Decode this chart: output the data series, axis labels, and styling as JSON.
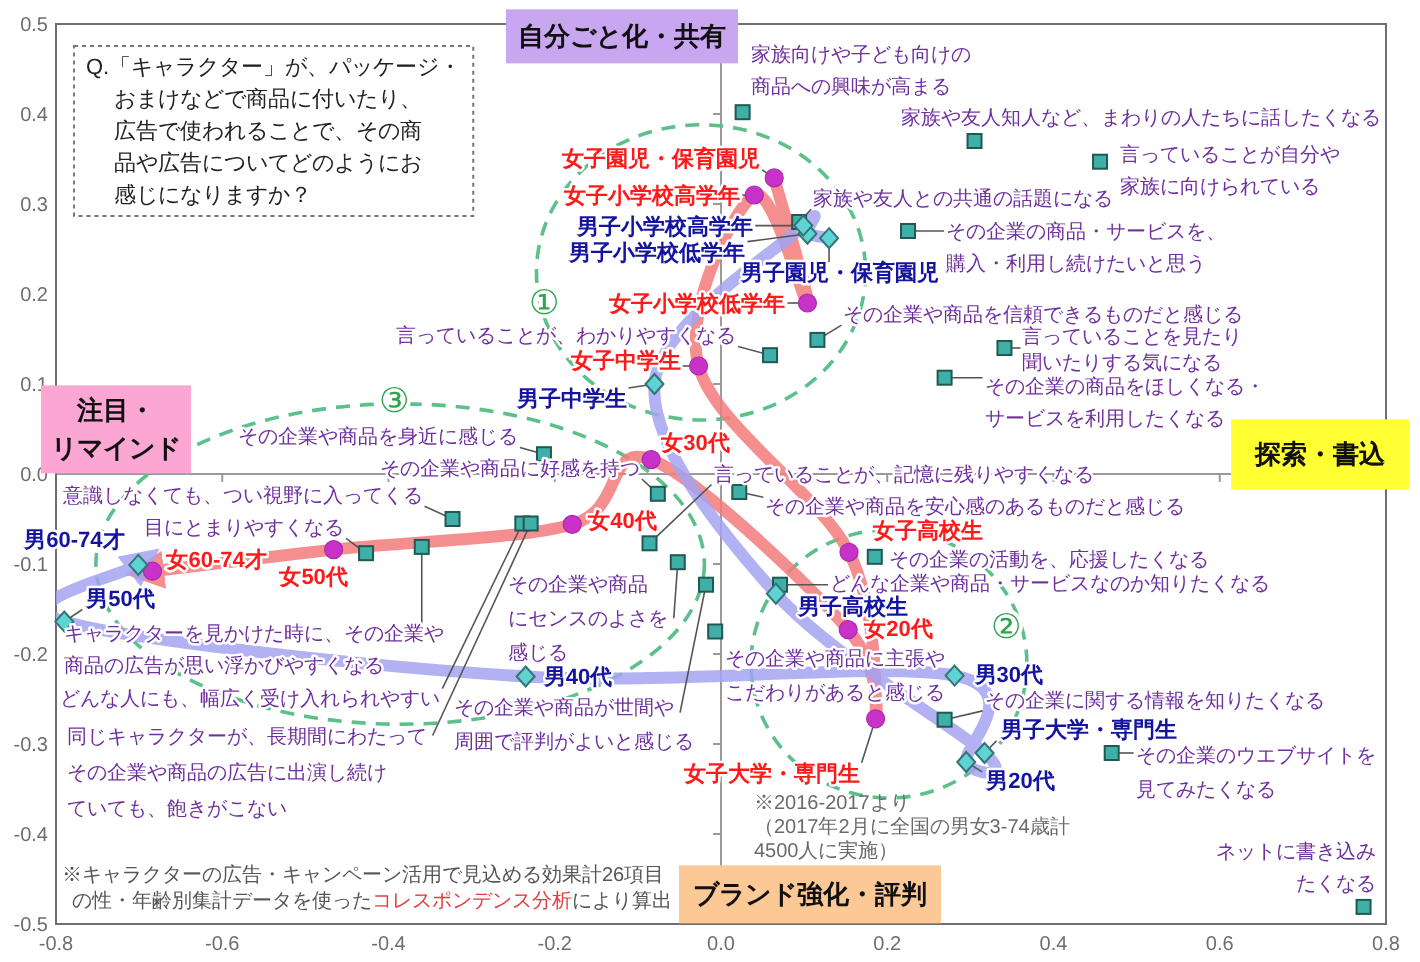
{
  "chart_data": {
    "type": "scatter",
    "title": "Q.「キャラクター」が、パッケージ・おまけなどで商品に付いたり、広告で使われることで、その商品や広告についてどのようにお感じになりますか？",
    "xlim": [
      -0.8,
      0.8
    ],
    "xticks": [
      -0.8,
      -0.6,
      -0.4,
      -0.2,
      {
        "value": 0,
        "label": "0.0"
      },
      0.2,
      0.4,
      0.6,
      0.8
    ],
    "ylim": [
      -0.5,
      0.5
    ],
    "yticks": [
      -0.5,
      -0.4,
      -0.3,
      -0.2,
      -0.1,
      {
        "value": 0,
        "label": "0.0"
      },
      0.1,
      0.2,
      0.3,
      0.4,
      0.5
    ],
    "series": [
      {
        "type": "line",
        "color": "#f47c7c",
        "x": [
          0.064,
          0.104,
          0.04,
          -0.027,
          0.154,
          0.186,
          0.153,
          -0.084,
          -0.179,
          -0.466,
          -0.684
        ],
        "values": [
          0.329,
          0.19,
          0.31,
          0.12,
          -0.087,
          -0.272,
          -0.173,
          0.016,
          -0.056,
          -0.084,
          -0.108
        ]
      },
      {
        "type": "line",
        "color": "#a4a4f2",
        "x": [
          0.13,
          0.104,
          0.099,
          -0.08,
          0.066,
          0.317,
          0.295,
          0.281,
          -0.235,
          -0.79,
          -0.701
        ],
        "values": [
          0.262,
          0.267,
          0.276,
          0.1,
          -0.133,
          -0.31,
          -0.32,
          -0.224,
          -0.225,
          -0.164,
          -0.101
        ]
      },
      {
        "marker": "square",
        "color": "#3fb0a8",
        "x": [
          0.026,
          0.305,
          0.456,
          0.094,
          0.225,
          0.116,
          0.341,
          0.269,
          0.059,
          -0.213,
          -0.076,
          -0.323,
          -0.427,
          -0.36,
          -0.239,
          -0.229,
          -0.052,
          -0.018,
          -0.086,
          0.022,
          0.185,
          0.071,
          -0.007,
          0.269,
          0.47,
          0.773
        ],
        "values": [
          0.402,
          0.37,
          0.347,
          0.28,
          0.27,
          0.149,
          0.14,
          0.107,
          0.132,
          0.022,
          -0.022,
          -0.05,
          -0.088,
          -0.081,
          -0.055,
          -0.055,
          -0.098,
          -0.123,
          -0.077,
          -0.02,
          -0.092,
          -0.123,
          -0.175,
          -0.273,
          -0.31,
          -0.481
        ]
      },
      {
        "marker": "circle",
        "color": "#c832c8",
        "x": [
          0.064,
          0.104,
          0.04,
          -0.027,
          0.154,
          0.186,
          0.153,
          -0.084,
          -0.179,
          -0.466,
          -0.684
        ],
        "values": [
          0.329,
          0.19,
          0.31,
          0.12,
          -0.087,
          -0.272,
          -0.173,
          0.016,
          -0.056,
          -0.084,
          -0.108
        ]
      },
      {
        "marker": "diamond",
        "color": "#5fd3d3",
        "x": [
          0.13,
          0.104,
          0.099,
          -0.08,
          0.066,
          0.317,
          0.295,
          0.281,
          -0.235,
          -0.79,
          -0.701
        ],
        "values": [
          0.262,
          0.267,
          0.276,
          0.1,
          -0.133,
          -0.31,
          -0.32,
          -0.224,
          -0.225,
          -0.164,
          -0.101
        ]
      }
    ],
    "annotations": [
      {
        "text": "家族向けや子ども向けの商品への興味が高まる",
        "x": 0.026,
        "y": 0.402
      },
      {
        "text": "家族や友人知人など、まわりの人たちに話したくなる",
        "x": 0.305,
        "y": 0.37
      },
      {
        "text": "言っていることが自分や家族に向けられている",
        "x": 0.456,
        "y": 0.347
      },
      {
        "text": "家族や友人との共通の話題になる",
        "x": 0.094,
        "y": 0.28
      },
      {
        "text": "その企業の商品・サービスを、購入・利用し続けたいと思う",
        "x": 0.225,
        "y": 0.27
      },
      {
        "text": "その企業や商品を信頼できるものだと感じる",
        "x": 0.116,
        "y": 0.149
      },
      {
        "text": "言っていることを見たり聞いたりする気になる",
        "x": 0.341,
        "y": 0.14
      },
      {
        "text": "その企業の商品をほしくなる・サービスを利用したくなる",
        "x": 0.269,
        "y": 0.107
      },
      {
        "text": "言っていることが、わかりやすくなる",
        "x": 0.059,
        "y": 0.132
      },
      {
        "text": "その企業や商品を身近に感じる",
        "x": -0.213,
        "y": 0.022
      },
      {
        "text": "その企業や商品に好感を持つ",
        "x": -0.076,
        "y": -0.022
      },
      {
        "text": "意識しなくても、つい視野に入ってくる",
        "x": -0.323,
        "y": -0.05
      },
      {
        "text": "目にとまりやすくなる",
        "x": -0.427,
        "y": -0.088
      },
      {
        "text": "キャラクターを見かけた時に、その企業や商品の広告が思い浮かびやすくなる",
        "x": -0.36,
        "y": -0.081
      },
      {
        "text": "どんな人にも、幅広く受け入れられやすい",
        "x": -0.239,
        "y": -0.055
      },
      {
        "text": "同じキャラクターが、長期間にわたってその企業や商品の広告に出演し続けていても、飽きがこない",
        "x": -0.229,
        "y": -0.055
      },
      {
        "text": "その企業や商品にセンスのよさを感じる",
        "x": -0.052,
        "y": -0.098
      },
      {
        "text": "その企業や商品が世間や周囲で評判がよいと感じる",
        "x": -0.018,
        "y": -0.123
      },
      {
        "text": "言っていることが、記憶に残りやすくなる",
        "x": -0.086,
        "y": -0.077
      },
      {
        "text": "その企業や商品を安心感のあるものだと感じる",
        "x": 0.022,
        "y": -0.02
      },
      {
        "text": "その企業の活動を、応援したくなる",
        "x": 0.185,
        "y": -0.092
      },
      {
        "text": "どんな企業や商品・サービスなのか知りたくなる",
        "x": 0.071,
        "y": -0.123
      },
      {
        "text": "その企業や商品に主張やこだわりがあると感じる",
        "x": -0.007,
        "y": -0.175
      },
      {
        "text": "その企業に関する情報を知りたくなる",
        "x": 0.269,
        "y": -0.273
      },
      {
        "text": "その企業のウエブサイトを見てみたくなる",
        "x": 0.47,
        "y": -0.31
      },
      {
        "text": "ネットに書き込みたくなる",
        "x": 0.773,
        "y": -0.481
      },
      {
        "text": "女子園児・保育園児",
        "x": 0.064,
        "y": 0.329
      },
      {
        "text": "女子小学校低学年",
        "x": 0.104,
        "y": 0.19
      },
      {
        "text": "女子小学校高学年",
        "x": 0.04,
        "y": 0.31
      },
      {
        "text": "女子中学生",
        "x": -0.027,
        "y": 0.12
      },
      {
        "text": "女子高校生",
        "x": 0.154,
        "y": -0.087
      },
      {
        "text": "女子大学・専門生",
        "x": 0.186,
        "y": -0.272
      },
      {
        "text": "女20代",
        "x": 0.153,
        "y": -0.173
      },
      {
        "text": "女30代",
        "x": -0.084,
        "y": 0.016
      },
      {
        "text": "女40代",
        "x": -0.179,
        "y": -0.056
      },
      {
        "text": "女50代",
        "x": -0.466,
        "y": -0.084
      },
      {
        "text": "女60-74才",
        "x": -0.684,
        "y": -0.108
      },
      {
        "text": "男子園児・保育園児",
        "x": 0.13,
        "y": 0.262
      },
      {
        "text": "男子小学校低学年",
        "x": 0.104,
        "y": 0.267
      },
      {
        "text": "男子小学校高学年",
        "x": 0.099,
        "y": 0.276
      },
      {
        "text": "男子中学生",
        "x": -0.08,
        "y": 0.1
      },
      {
        "text": "男子高校生",
        "x": 0.066,
        "y": -0.133
      },
      {
        "text": "男子大学・専門生",
        "x": 0.317,
        "y": -0.31
      },
      {
        "text": "男20代",
        "x": 0.295,
        "y": -0.32
      },
      {
        "text": "男30代",
        "x": 0.281,
        "y": -0.224
      },
      {
        "text": "男40代",
        "x": -0.235,
        "y": -0.225
      },
      {
        "text": "男50代",
        "x": -0.79,
        "y": -0.164
      },
      {
        "text": "男60-74才",
        "x": -0.701,
        "y": -0.101
      },
      "自分ごと化・共有",
      "探索・書込",
      "ブランド強化・評判",
      "注目・リマインド",
      "①",
      "②",
      "③",
      "※キャラクターの広告・キャンペーン活用で見込める効果計26項目の性・年齢別集計データを使った",
      "コレスポンデンス分析",
      "により算出",
      "※2016-2017より（2017年2月に全国の男女3-74歳計4500人に実施）"
    ]
  }
}
